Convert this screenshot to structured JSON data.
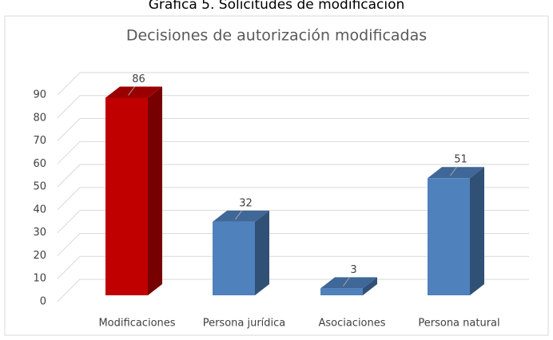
{
  "caption": "Grafica 5. Solicitudes de modificacion",
  "chart_data": {
    "type": "bar3d",
    "title": "Decisiones de autorización modificadas",
    "categories": [
      "Modificaciones",
      "Persona jurídica",
      "Asociaciones",
      "Persona natural"
    ],
    "values": [
      86,
      32,
      3,
      51
    ],
    "colors": [
      "#c00000",
      "#4f81bd",
      "#4f81bd",
      "#4f81bd"
    ],
    "ylim": [
      0,
      90
    ],
    "yticks": [
      0,
      10,
      20,
      30,
      40,
      50,
      60,
      70,
      80,
      90
    ],
    "grid": true
  }
}
